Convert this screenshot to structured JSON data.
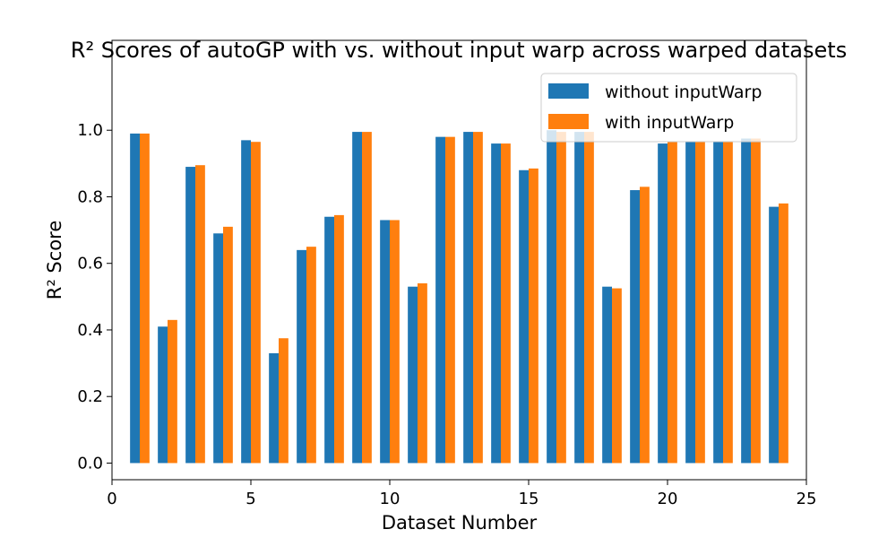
{
  "chart_data": {
    "type": "bar",
    "title": "R² Scores of autoGP with vs. without input warp across warped datasets",
    "xlabel": "Dataset Number",
    "ylabel": "R² Score",
    "x": [
      1,
      2,
      3,
      4,
      5,
      6,
      7,
      8,
      9,
      10,
      11,
      12,
      13,
      14,
      15,
      16,
      17,
      18,
      19,
      20,
      21,
      22,
      23,
      24
    ],
    "series": [
      {
        "name": "without inputWarp",
        "color": "#1f77b4",
        "values": [
          0.99,
          0.41,
          0.89,
          0.69,
          0.97,
          0.33,
          0.64,
          0.74,
          0.995,
          0.73,
          0.53,
          0.98,
          0.995,
          0.96,
          0.88,
          1.0,
          0.995,
          0.53,
          0.82,
          0.96,
          0.965,
          0.965,
          0.975,
          0.77
        ]
      },
      {
        "name": "with inputWarp",
        "color": "#ff7f0e",
        "values": [
          0.99,
          0.43,
          0.895,
          0.71,
          0.965,
          0.375,
          0.65,
          0.745,
          0.995,
          0.73,
          0.54,
          0.98,
          0.995,
          0.96,
          0.885,
          0.995,
          0.995,
          0.525,
          0.83,
          0.965,
          0.965,
          0.965,
          0.975,
          0.78
        ]
      }
    ],
    "xlim": [
      0,
      25
    ],
    "ylim": [
      -0.05,
      1.27
    ],
    "xticks": [
      "0",
      "5",
      "10",
      "15",
      "20",
      "25"
    ],
    "yticks": [
      "0.0",
      "0.2",
      "0.4",
      "0.6",
      "0.8",
      "1.0"
    ],
    "grid": false,
    "legend_position": "top-right"
  }
}
